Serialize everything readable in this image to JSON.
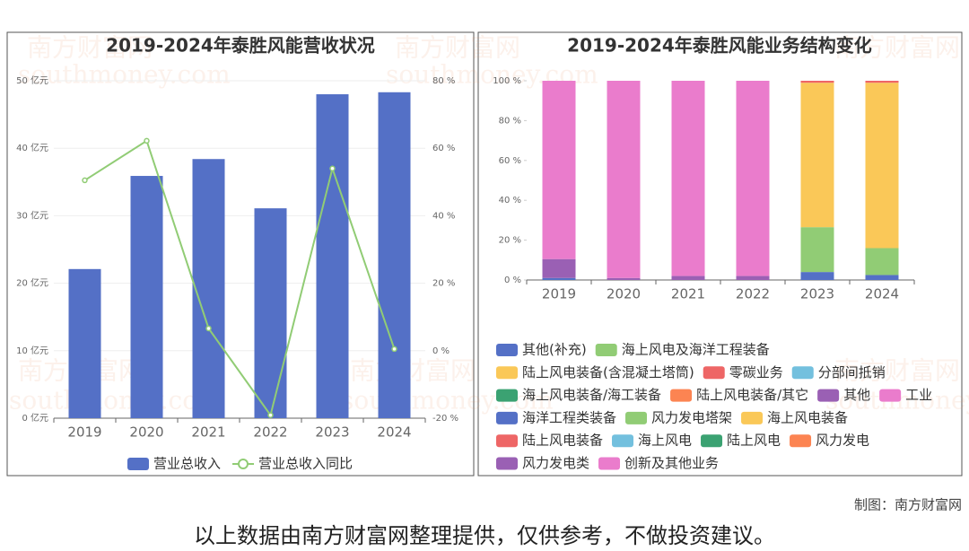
{
  "chart_data": [
    {
      "type": "bar",
      "title": "2019-2024年泰胜风能营收状况",
      "categories": [
        "2019",
        "2020",
        "2021",
        "2022",
        "2023",
        "2024"
      ],
      "series": [
        {
          "name": "营业总收入",
          "color": "#5470c6",
          "type": "bar",
          "values": [
            22.1,
            35.9,
            38.4,
            31.1,
            48.0,
            48.3
          ]
        },
        {
          "name": "营业总收入同比",
          "color": "#91cc75",
          "type": "line",
          "axis": "y2",
          "values": [
            50.5,
            62.2,
            6.6,
            -19.1,
            54.0,
            0.5
          ]
        }
      ],
      "ylim": [
        0,
        50
      ],
      "yticks": [
        {
          "value": 0,
          "label": "0 亿元"
        },
        {
          "value": 10,
          "label": "10 亿元"
        },
        {
          "value": 20,
          "label": "20 亿元"
        },
        {
          "value": 30,
          "label": "30 亿元"
        },
        {
          "value": 40,
          "label": "40 亿元"
        },
        {
          "value": 50,
          "label": "50 亿元"
        }
      ],
      "y2lim": [
        -20,
        80
      ],
      "y2ticks": [
        {
          "value": -20,
          "label": "-20 %"
        },
        {
          "value": 0,
          "label": "0 %"
        },
        {
          "value": 20,
          "label": "20 %"
        },
        {
          "value": 40,
          "label": "40 %"
        },
        {
          "value": 60,
          "label": "60 %"
        },
        {
          "value": 80,
          "label": "80 %"
        }
      ],
      "grid": true
    },
    {
      "type": "stacked_bar",
      "title": "2019-2024年泰胜风能业务结构变化",
      "categories": [
        "2019",
        "2020",
        "2021",
        "2022",
        "2023",
        "2024"
      ],
      "series": [
        {
          "name": "其他(补充)",
          "color": "#5470c6",
          "values": [
            1,
            0,
            0,
            0,
            4,
            2.5
          ]
        },
        {
          "name": "海上风电及海洋工程装备",
          "color": "#91cc75",
          "values": [
            0,
            0,
            0,
            0,
            22.5,
            13.5
          ]
        },
        {
          "name": "陆上风电装备(含混凝土塔筒)",
          "color": "#fac858",
          "values": [
            0,
            0,
            0,
            0,
            72.5,
            83
          ]
        },
        {
          "name": "零碳业务",
          "color": "#ee6666",
          "values": [
            0,
            0,
            0,
            0,
            1,
            1
          ]
        },
        {
          "name": "分部间抵销",
          "color": "#73c0de",
          "values": [
            0,
            0,
            0,
            0,
            0,
            0
          ]
        },
        {
          "name": "海上风电装备/海工装备",
          "color": "#3ba272",
          "values": [
            0,
            0,
            0,
            0,
            0,
            0
          ]
        },
        {
          "name": "陆上风电装备/其它",
          "color": "#fc8452",
          "values": [
            0,
            0,
            0,
            0,
            0,
            0
          ]
        },
        {
          "name": "其他",
          "color": "#9a60b4",
          "values": [
            9.5,
            1,
            2,
            2,
            0,
            0
          ]
        },
        {
          "name": "工业",
          "color": "#ea7ccc",
          "values": [
            89.5,
            99,
            98,
            98,
            0,
            0
          ]
        },
        {
          "name": "海洋工程类装备",
          "color": "#5470c6",
          "values": [
            0,
            0,
            0,
            0,
            0,
            0
          ]
        },
        {
          "name": "风力发电塔架",
          "color": "#91cc75",
          "values": [
            0,
            0,
            0,
            0,
            0,
            0
          ]
        },
        {
          "name": "海上风电装备",
          "color": "#fac858",
          "values": [
            0,
            0,
            0,
            0,
            0,
            0
          ]
        },
        {
          "name": "陆上风电装备",
          "color": "#ee6666",
          "values": [
            0,
            0,
            0,
            0,
            0,
            0
          ]
        },
        {
          "name": "海上风电",
          "color": "#73c0de",
          "values": [
            0,
            0,
            0,
            0,
            0,
            0
          ]
        },
        {
          "name": "陆上风电",
          "color": "#3ba272",
          "values": [
            0,
            0,
            0,
            0,
            0,
            0
          ]
        },
        {
          "name": "风力发电",
          "color": "#fc8452",
          "values": [
            0,
            0,
            0,
            0,
            0,
            0
          ]
        },
        {
          "name": "风力发电类",
          "color": "#9a60b4",
          "values": [
            0,
            0,
            0,
            0,
            0,
            0
          ]
        },
        {
          "name": "创新及其他业务",
          "color": "#ea7ccc",
          "values": [
            0,
            0,
            0,
            0,
            0,
            0
          ]
        }
      ],
      "ylim": [
        0,
        100
      ],
      "yticks": [
        {
          "value": 0,
          "label": "0 %"
        },
        {
          "value": 20,
          "label": "20 %"
        },
        {
          "value": 40,
          "label": "40 %"
        },
        {
          "value": 60,
          "label": "60 %"
        },
        {
          "value": 80,
          "label": "80 %"
        },
        {
          "value": 100,
          "label": "100 %"
        }
      ],
      "grid": false
    }
  ],
  "watermark": {
    "name": "南方财富网",
    "site": "southmoney.com"
  },
  "footer": {
    "credit": "制图：南方财富网",
    "disclaimer": "以上数据由南方财富网整理提供，仅供参考，不做投资建议。"
  }
}
